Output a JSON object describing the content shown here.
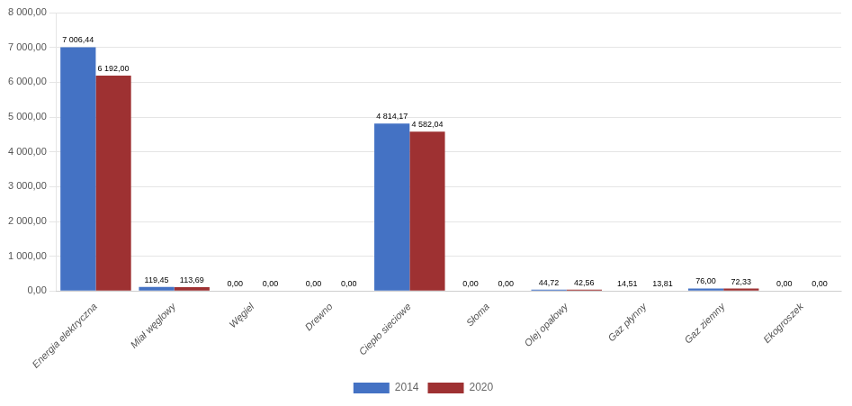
{
  "chart_data": {
    "type": "bar",
    "categories": [
      "Energia elektryczna",
      "Miał węglowy",
      "Węgiel",
      "Drewno",
      "Ciepło sieciowe",
      "Słoma",
      "Olej opałowy",
      "Gaz płynny",
      "Gaz ziemny",
      "Ekogroszek"
    ],
    "series": [
      {
        "name": "2014",
        "color": "#4472C4",
        "values": [
          7006.44,
          119.45,
          0.0,
          0.0,
          4814.17,
          0.0,
          44.72,
          14.51,
          76.0,
          0.0
        ],
        "value_labels": [
          "7 006,44",
          "119,45",
          "0,00",
          "0,00",
          "4 814,17",
          "0,00",
          "44,72",
          "14,51",
          "76,00",
          "0,00"
        ]
      },
      {
        "name": "2020",
        "color": "#9E3132",
        "values": [
          6192.0,
          113.69,
          0.0,
          0.0,
          4582.04,
          0.0,
          42.56,
          13.81,
          72.33,
          0.0
        ],
        "value_labels": [
          "6 192,00",
          "113,69",
          "0,00",
          "0,00",
          "4 582,04",
          "0,00",
          "42,56",
          "13,81",
          "72,33",
          "0,00"
        ]
      }
    ],
    "ylim": [
      0,
      8000
    ],
    "yticks": [
      {
        "value": 0,
        "label": "0,00"
      },
      {
        "value": 1000,
        "label": "1 000,00"
      },
      {
        "value": 2000,
        "label": "2 000,00"
      },
      {
        "value": 3000,
        "label": "3 000,00"
      },
      {
        "value": 4000,
        "label": "4 000,00"
      },
      {
        "value": 5000,
        "label": "5 000,00"
      },
      {
        "value": 6000,
        "label": "6 000,00"
      },
      {
        "value": 7000,
        "label": "7 000,00"
      },
      {
        "value": 8000,
        "label": "8 000,00"
      }
    ],
    "grid": true,
    "legend": "bottom",
    "data_labels": true
  }
}
